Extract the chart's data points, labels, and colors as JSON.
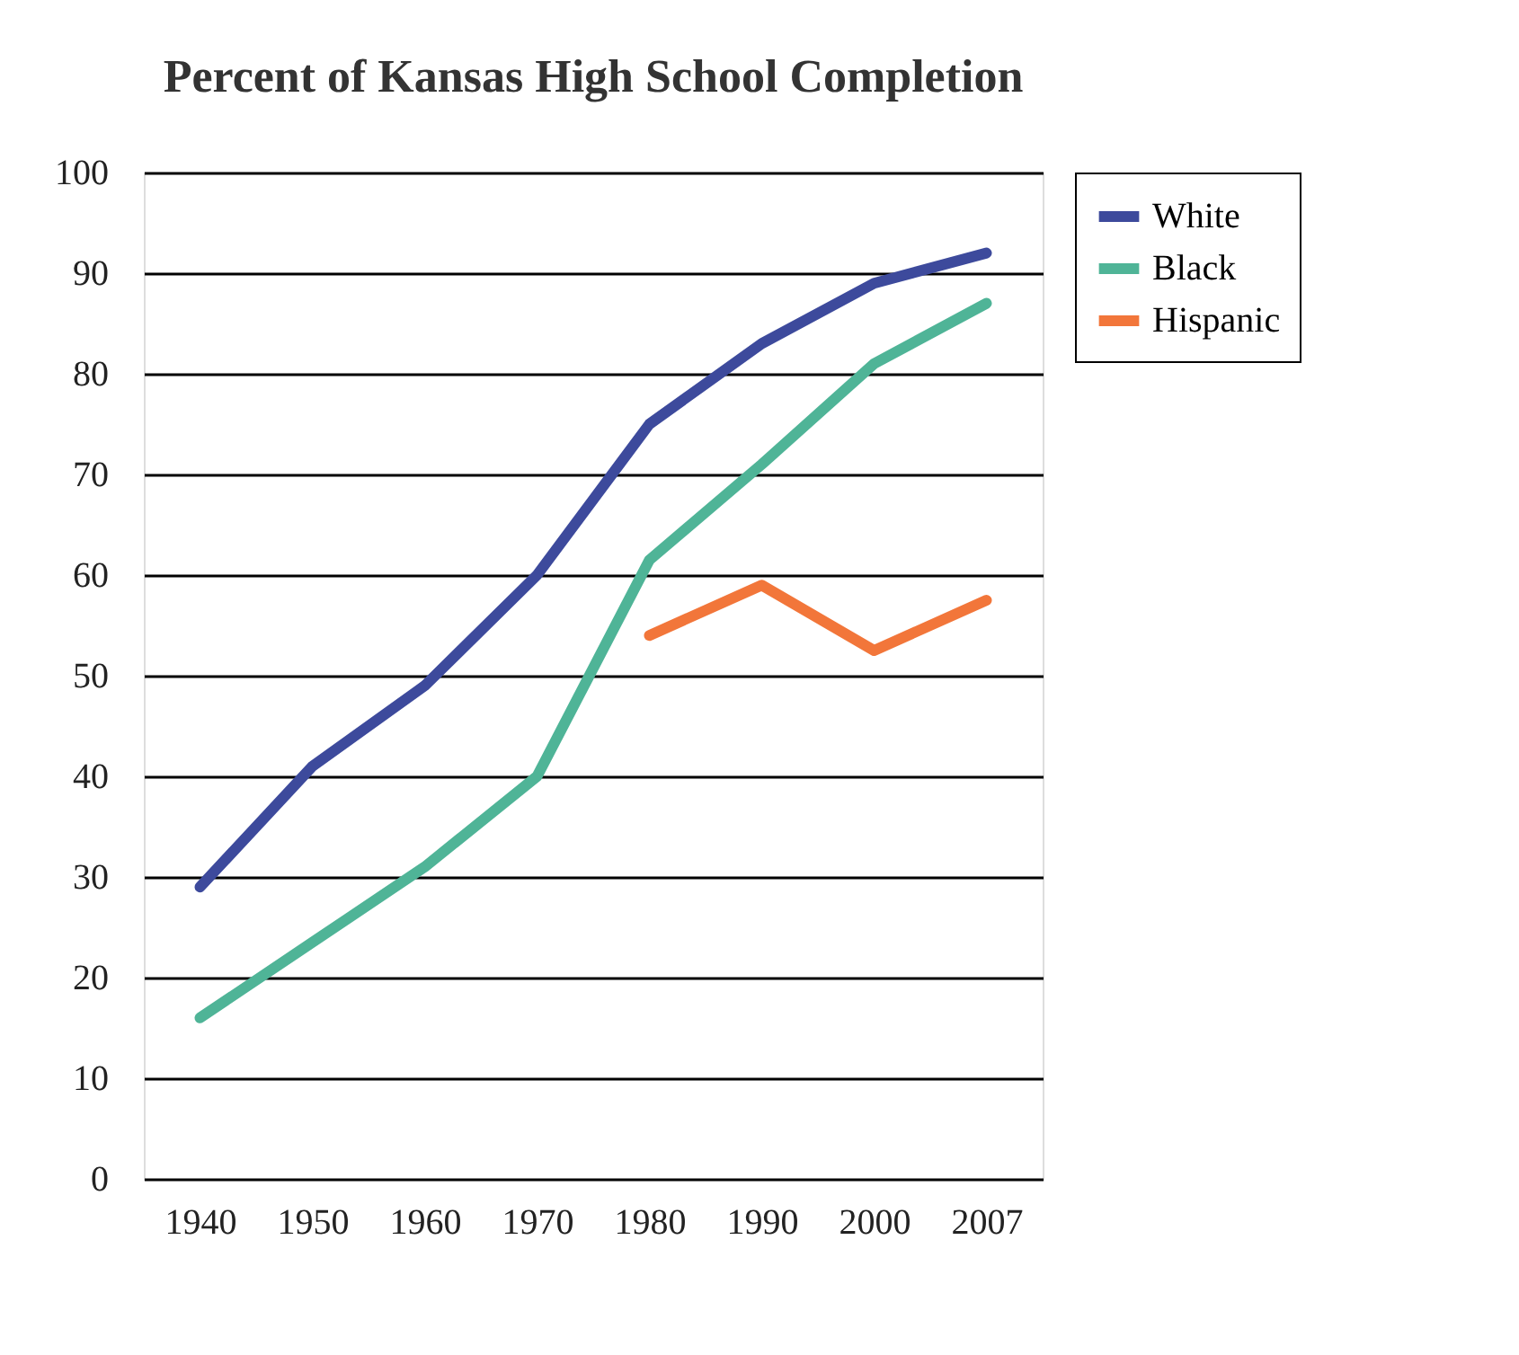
{
  "chart_data": {
    "type": "line",
    "title": "Percent of Kansas High School Completion",
    "categories": [
      "1940",
      "1950",
      "1960",
      "1970",
      "1980",
      "1990",
      "2000",
      "2007"
    ],
    "series": [
      {
        "name": "White",
        "color": "#3d4a9c",
        "values": [
          29,
          41,
          49,
          60,
          75,
          83,
          89,
          92
        ]
      },
      {
        "name": "Black",
        "color": "#4fb497",
        "values": [
          16,
          23.5,
          31,
          40,
          61.5,
          71,
          81,
          87
        ]
      },
      {
        "name": "Hispanic",
        "color": "#f2763a",
        "values": [
          null,
          null,
          null,
          null,
          54,
          59,
          52.5,
          57.5
        ]
      }
    ],
    "ylim": [
      0,
      100
    ],
    "yticks": [
      0,
      10,
      20,
      30,
      40,
      50,
      60,
      70,
      80,
      90,
      100
    ],
    "grid": "y",
    "legend": "right",
    "marker": "none",
    "line_style": "solid"
  }
}
